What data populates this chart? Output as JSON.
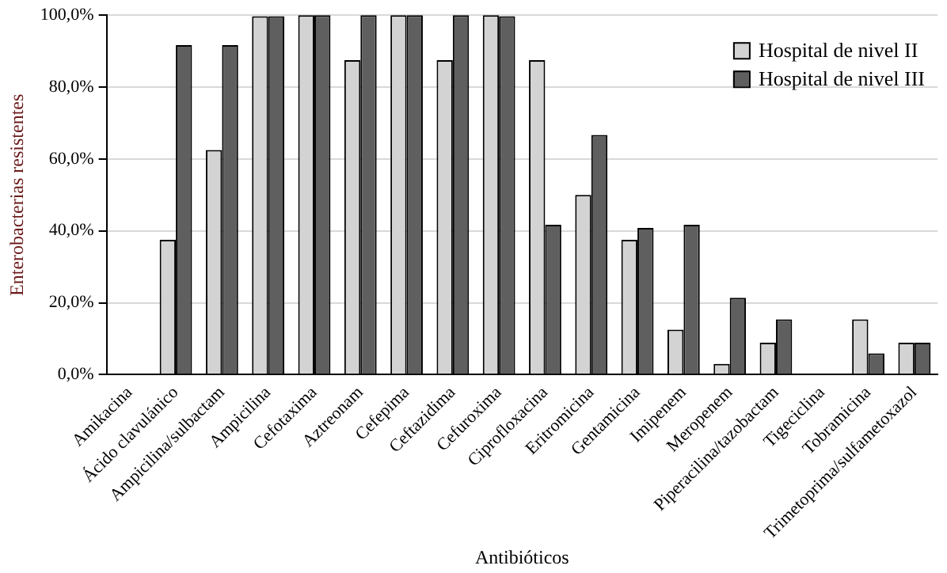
{
  "chart_data": {
    "type": "bar",
    "xlabel": "Antibióticos",
    "ylabel": "Enterobacterias resistentes",
    "categories": [
      "Amikacina",
      "Ácido clavulánico",
      "Ampicilina/sulbactam",
      "Ampicilina",
      "Cefotaxima",
      "Aztreonam",
      "Cefepima",
      "Ceftazidima",
      "Cefuroxima",
      "Ciprofloxacina",
      "Eritromicina",
      "Gentamicina",
      "Imipenem",
      "Meropenem",
      "Piperacilina/tazobactam",
      "Tigeciclina",
      "Tobramicina",
      "Trimetoprima/sulfametoxazol"
    ],
    "series": [
      {
        "name": "Hospital de nivel II",
        "color": "#d3d3d3",
        "values": [
          0,
          37.5,
          62.5,
          99.7,
          100,
          87.5,
          100,
          87.5,
          100,
          87.5,
          50,
          37.5,
          12.5,
          3,
          8.9,
          0,
          15.4,
          8.9
        ]
      },
      {
        "name": "Hospital de nivel III",
        "color": "#5f5f5f",
        "values": [
          0,
          91.7,
          91.7,
          99.7,
          100,
          100,
          100,
          100,
          99.7,
          41.7,
          66.7,
          40.8,
          41.7,
          21.4,
          15.4,
          0,
          5.9,
          8.9
        ]
      }
    ],
    "ylim": [
      0,
      100
    ],
    "yticks": [
      {
        "value": 0,
        "label": "0,0%"
      },
      {
        "value": 20,
        "label": "20,0%"
      },
      {
        "value": 40,
        "label": "40,0%"
      },
      {
        "value": 60,
        "label": "60,0%"
      },
      {
        "value": 80,
        "label": "80,0%"
      },
      {
        "value": 100,
        "label": "100,0%"
      }
    ],
    "grid": "y",
    "legend": "top right"
  }
}
